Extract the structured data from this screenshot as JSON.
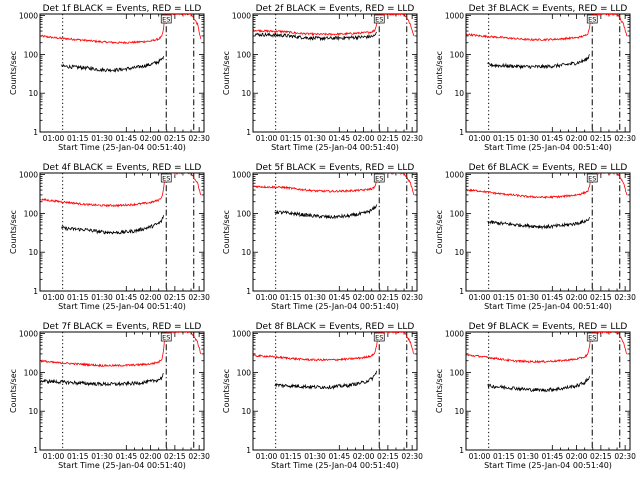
{
  "chart_data": [
    {
      "type": "line",
      "title": "Det 1f BLACK = Events, RED = LLD",
      "xlabel": "Start Time (25-Jan-04 00:51:40)",
      "ylabel": "Counts/sec",
      "xlim": [
        "00:51:40",
        "02:33:00"
      ],
      "xticks": [
        "01:00",
        "01:15",
        "01:30",
        "01:45",
        "02:00",
        "02:15",
        "02:30"
      ],
      "ylim": [
        1,
        1100
      ],
      "yscale": "log",
      "yticks": [
        "1",
        "10",
        "100",
        "1000"
      ],
      "annotation": "ES",
      "vlines": [
        {
          "x": "01:05:40",
          "style": "dotted"
        },
        {
          "x": "02:09:40",
          "style": "dash-dot"
        },
        {
          "x": "02:26:40",
          "style": "dash-dot"
        }
      ],
      "series": [
        {
          "name": "LLD",
          "color": "#ff0000",
          "x": [
            "00:52",
            "01:00",
            "01:10",
            "01:20",
            "01:30",
            "01:40",
            "01:50",
            "02:00",
            "02:05",
            "02:07",
            "02:08",
            "02:09",
            "02:12",
            "02:20",
            "02:25",
            "02:29",
            "02:31"
          ],
          "y": [
            300,
            270,
            250,
            230,
            210,
            200,
            205,
            220,
            250,
            290,
            450,
            1100,
            1100,
            1100,
            1100,
            600,
            250
          ]
        },
        {
          "name": "Events",
          "color": "#000000",
          "x": [
            "01:05",
            "01:10",
            "01:20",
            "01:30",
            "01:40",
            "01:50",
            "02:00",
            "02:05",
            "02:07",
            "02:08"
          ],
          "y": [
            50,
            48,
            45,
            40,
            40,
            45,
            55,
            65,
            75,
            90
          ]
        }
      ]
    },
    {
      "type": "line",
      "title": "Det 2f BLACK = Events, RED = LLD",
      "xlabel": "Start Time (25-Jan-04 00:51:40)",
      "ylabel": "Counts/sec",
      "xlim": [
        "00:51:40",
        "02:33:00"
      ],
      "xticks": [
        "01:00",
        "01:15",
        "01:30",
        "01:45",
        "02:00",
        "02:15",
        "02:30"
      ],
      "ylim": [
        1,
        1100
      ],
      "yscale": "log",
      "yticks": [
        "1",
        "10",
        "100",
        "1000"
      ],
      "annotation": "ES",
      "vlines": [
        {
          "x": "01:05:40",
          "style": "dotted"
        },
        {
          "x": "02:09:40",
          "style": "dash-dot"
        },
        {
          "x": "02:26:40",
          "style": "dash-dot"
        }
      ],
      "series": [
        {
          "name": "LLD",
          "color": "#ff0000",
          "x": [
            "00:52",
            "01:00",
            "01:10",
            "01:20",
            "01:30",
            "01:40",
            "01:50",
            "02:00",
            "02:05",
            "02:07",
            "02:08",
            "02:09",
            "02:12",
            "02:20",
            "02:25",
            "02:29",
            "02:31"
          ],
          "y": [
            420,
            400,
            390,
            350,
            330,
            330,
            340,
            360,
            380,
            420,
            600,
            1100,
            1100,
            1100,
            1100,
            600,
            300
          ]
        },
        {
          "name": "Events",
          "color": "#000000",
          "x": [
            "00:52",
            "01:00",
            "01:10",
            "01:20",
            "01:30",
            "01:40",
            "01:50",
            "02:00",
            "02:05",
            "02:07",
            "02:08"
          ],
          "y": [
            330,
            320,
            310,
            280,
            260,
            260,
            270,
            280,
            290,
            300,
            380
          ]
        }
      ]
    },
    {
      "type": "line",
      "title": "Det 3f BLACK = Events, RED = LLD",
      "xlabel": "Start Time (25-Jan-04 00:51:40)",
      "ylabel": "Counts/sec",
      "xlim": [
        "00:51:40",
        "02:33:00"
      ],
      "xticks": [
        "01:00",
        "01:15",
        "01:30",
        "01:45",
        "02:00",
        "02:15",
        "02:30"
      ],
      "ylim": [
        1,
        1100
      ],
      "yscale": "log",
      "yticks": [
        "1",
        "10",
        "100",
        "1000"
      ],
      "annotation": "ES",
      "vlines": [
        {
          "x": "01:05:40",
          "style": "dotted"
        },
        {
          "x": "02:09:40",
          "style": "dash-dot"
        },
        {
          "x": "02:26:40",
          "style": "dash-dot"
        }
      ],
      "series": [
        {
          "name": "LLD",
          "color": "#ff0000",
          "x": [
            "00:52",
            "01:00",
            "01:10",
            "01:20",
            "01:30",
            "01:40",
            "01:50",
            "02:00",
            "02:05",
            "02:07",
            "02:08",
            "02:09",
            "02:12",
            "02:20",
            "02:25",
            "02:29",
            "02:31"
          ],
          "y": [
            330,
            300,
            280,
            260,
            240,
            240,
            250,
            270,
            300,
            350,
            500,
            1100,
            1100,
            1100,
            1100,
            600,
            300
          ]
        },
        {
          "name": "Events",
          "color": "#000000",
          "x": [
            "01:05",
            "01:10",
            "01:20",
            "01:30",
            "01:40",
            "01:50",
            "02:00",
            "02:05",
            "02:07",
            "02:08"
          ],
          "y": [
            55,
            52,
            50,
            48,
            48,
            52,
            60,
            70,
            80,
            100
          ]
        }
      ]
    },
    {
      "type": "line",
      "title": "Det 4f BLACK = Events, RED = LLD",
      "xlabel": "Start Time (25-Jan-04 00:51:40)",
      "ylabel": "Counts/sec",
      "xlim": [
        "00:51:40",
        "02:33:00"
      ],
      "xticks": [
        "01:00",
        "01:15",
        "01:30",
        "01:45",
        "02:00",
        "02:15",
        "02:30"
      ],
      "ylim": [
        1,
        1100
      ],
      "yscale": "log",
      "yticks": [
        "1",
        "10",
        "100",
        "1000"
      ],
      "annotation": "ES",
      "vlines": [
        {
          "x": "01:05:40",
          "style": "dotted"
        },
        {
          "x": "02:09:40",
          "style": "dash-dot"
        },
        {
          "x": "02:26:40",
          "style": "dash-dot"
        }
      ],
      "series": [
        {
          "name": "LLD",
          "color": "#ff0000",
          "x": [
            "00:52",
            "01:00",
            "01:10",
            "01:20",
            "01:30",
            "01:40",
            "01:50",
            "02:00",
            "02:05",
            "02:07",
            "02:08",
            "02:09",
            "02:12",
            "02:20",
            "02:25",
            "02:29",
            "02:31"
          ],
          "y": [
            230,
            210,
            190,
            170,
            160,
            160,
            170,
            190,
            220,
            270,
            420,
            1100,
            1100,
            1100,
            1100,
            600,
            300
          ]
        },
        {
          "name": "Events",
          "color": "#000000",
          "x": [
            "01:05",
            "01:10",
            "01:20",
            "01:30",
            "01:40",
            "01:50",
            "02:00",
            "02:05",
            "02:07",
            "02:08"
          ],
          "y": [
            42,
            40,
            38,
            33,
            32,
            35,
            45,
            55,
            65,
            90
          ]
        }
      ]
    },
    {
      "type": "line",
      "title": "Det 5f BLACK = Events, RED = LLD",
      "xlabel": "Start Time (25-Jan-04 00:51:40)",
      "ylabel": "Counts/sec",
      "xlim": [
        "00:51:40",
        "02:33:00"
      ],
      "xticks": [
        "01:00",
        "01:15",
        "01:30",
        "01:45",
        "02:00",
        "02:15",
        "02:30"
      ],
      "ylim": [
        1,
        1100
      ],
      "yscale": "log",
      "yticks": [
        "1",
        "10",
        "100",
        "1000"
      ],
      "annotation": "ES",
      "vlines": [
        {
          "x": "01:05:40",
          "style": "dotted"
        },
        {
          "x": "02:09:40",
          "style": "dash-dot"
        },
        {
          "x": "02:26:40",
          "style": "dash-dot"
        }
      ],
      "series": [
        {
          "name": "LLD",
          "color": "#ff0000",
          "x": [
            "00:52",
            "01:00",
            "01:10",
            "01:20",
            "01:30",
            "01:40",
            "01:50",
            "02:00",
            "02:05",
            "02:07",
            "02:08",
            "02:09",
            "02:12",
            "02:20",
            "02:25",
            "02:29",
            "02:31"
          ],
          "y": [
            500,
            480,
            470,
            420,
            380,
            370,
            380,
            400,
            430,
            480,
            650,
            1100,
            1100,
            1100,
            1100,
            600,
            300
          ]
        },
        {
          "name": "Events",
          "color": "#000000",
          "x": [
            "01:05",
            "01:10",
            "01:20",
            "01:30",
            "01:40",
            "01:50",
            "02:00",
            "02:05",
            "02:07",
            "02:08"
          ],
          "y": [
            110,
            105,
            95,
            85,
            80,
            85,
            100,
            120,
            140,
            170
          ]
        }
      ]
    },
    {
      "type": "line",
      "title": "Det 6f BLACK = Events, RED = LLD",
      "xlabel": "Start Time (25-Jan-04 00:51:40)",
      "ylabel": "Counts/sec",
      "xlim": [
        "00:51:40",
        "02:33:00"
      ],
      "xticks": [
        "01:00",
        "01:15",
        "01:30",
        "01:45",
        "02:00",
        "02:15",
        "02:30"
      ],
      "ylim": [
        1,
        1100
      ],
      "yscale": "log",
      "yticks": [
        "1",
        "10",
        "100",
        "1000"
      ],
      "annotation": "ES",
      "vlines": [
        {
          "x": "01:05:40",
          "style": "dotted"
        },
        {
          "x": "02:09:40",
          "style": "dash-dot"
        },
        {
          "x": "02:26:40",
          "style": "dash-dot"
        }
      ],
      "series": [
        {
          "name": "LLD",
          "color": "#ff0000",
          "x": [
            "00:52",
            "01:00",
            "01:10",
            "01:20",
            "01:30",
            "01:40",
            "01:50",
            "02:00",
            "02:05",
            "02:07",
            "02:08",
            "02:09",
            "02:12",
            "02:20",
            "02:25",
            "02:29",
            "02:31"
          ],
          "y": [
            400,
            380,
            330,
            300,
            270,
            260,
            270,
            300,
            340,
            380,
            500,
            1100,
            1100,
            1100,
            1100,
            600,
            300
          ]
        },
        {
          "name": "Events",
          "color": "#000000",
          "x": [
            "01:05",
            "01:10",
            "01:20",
            "01:30",
            "01:40",
            "01:50",
            "02:00",
            "02:05",
            "02:07",
            "02:08"
          ],
          "y": [
            60,
            57,
            52,
            48,
            45,
            48,
            55,
            62,
            68,
            80
          ]
        }
      ]
    },
    {
      "type": "line",
      "title": "Det 7f BLACK = Events, RED = LLD",
      "xlabel": "Start Time (25-Jan-04 00:51:40)",
      "ylabel": "Counts/sec",
      "xlim": [
        "00:51:40",
        "02:33:00"
      ],
      "xticks": [
        "01:00",
        "01:15",
        "01:30",
        "01:45",
        "02:00",
        "02:15",
        "02:30"
      ],
      "ylim": [
        1,
        1100
      ],
      "yscale": "log",
      "yticks": [
        "1",
        "10",
        "100",
        "1000"
      ],
      "annotation": "ES",
      "vlines": [
        {
          "x": "01:05:40",
          "style": "dotted"
        },
        {
          "x": "02:09:40",
          "style": "dash-dot"
        },
        {
          "x": "02:26:40",
          "style": "dash-dot"
        }
      ],
      "series": [
        {
          "name": "LLD",
          "color": "#ff0000",
          "x": [
            "00:52",
            "01:00",
            "01:10",
            "01:20",
            "01:30",
            "01:40",
            "01:50",
            "02:00",
            "02:05",
            "02:07",
            "02:08",
            "02:09",
            "02:12",
            "02:20",
            "02:25",
            "02:29",
            "02:31"
          ],
          "y": [
            200,
            180,
            170,
            160,
            150,
            150,
            155,
            165,
            185,
            220,
            380,
            1100,
            1100,
            1100,
            1100,
            600,
            300
          ]
        },
        {
          "name": "Events",
          "color": "#000000",
          "x": [
            "00:52",
            "01:00",
            "01:10",
            "01:20",
            "01:30",
            "01:40",
            "01:50",
            "02:00",
            "02:05",
            "02:07",
            "02:08"
          ],
          "y": [
            60,
            58,
            55,
            52,
            50,
            50,
            52,
            58,
            65,
            75,
            95
          ]
        }
      ]
    },
    {
      "type": "line",
      "title": "Det 8f BLACK = Events, RED = LLD",
      "xlabel": "Start Time (25-Jan-04 00:51:40)",
      "ylabel": "Counts/sec",
      "xlim": [
        "00:51:40",
        "02:33:00"
      ],
      "xticks": [
        "01:00",
        "01:15",
        "01:30",
        "01:45",
        "02:00",
        "02:15",
        "02:30"
      ],
      "ylim": [
        1,
        1100
      ],
      "yscale": "log",
      "yticks": [
        "1",
        "10",
        "100",
        "1000"
      ],
      "annotation": "ES",
      "vlines": [
        {
          "x": "01:05:40",
          "style": "dotted"
        },
        {
          "x": "02:09:40",
          "style": "dash-dot"
        },
        {
          "x": "02:26:40",
          "style": "dash-dot"
        }
      ],
      "series": [
        {
          "name": "LLD",
          "color": "#ff0000",
          "x": [
            "00:52",
            "01:00",
            "01:10",
            "01:20",
            "01:30",
            "01:40",
            "01:50",
            "02:00",
            "02:05",
            "02:07",
            "02:08",
            "02:09",
            "02:12",
            "02:20",
            "02:25",
            "02:29",
            "02:31"
          ],
          "y": [
            270,
            260,
            240,
            220,
            210,
            210,
            220,
            240,
            270,
            320,
            480,
            1100,
            1100,
            1100,
            1100,
            600,
            300
          ]
        },
        {
          "name": "Events",
          "color": "#000000",
          "x": [
            "01:05",
            "01:10",
            "01:20",
            "01:30",
            "01:40",
            "01:50",
            "02:00",
            "02:05",
            "02:07",
            "02:08"
          ],
          "y": [
            48,
            46,
            44,
            42,
            42,
            46,
            55,
            68,
            85,
            110
          ]
        }
      ]
    },
    {
      "type": "line",
      "title": "Det 9f BLACK = Events, RED = LLD",
      "xlabel": "Start Time (25-Jan-04 00:51:40)",
      "ylabel": "Counts/sec",
      "xlim": [
        "00:51:40",
        "02:33:00"
      ],
      "xticks": [
        "01:00",
        "01:15",
        "01:30",
        "01:45",
        "02:00",
        "02:15",
        "02:30"
      ],
      "ylim": [
        1,
        1100
      ],
      "yscale": "log",
      "yticks": [
        "1",
        "10",
        "100",
        "1000"
      ],
      "annotation": "ES",
      "vlines": [
        {
          "x": "01:05:40",
          "style": "dotted"
        },
        {
          "x": "02:09:40",
          "style": "dash-dot"
        },
        {
          "x": "02:26:40",
          "style": "dash-dot"
        }
      ],
      "series": [
        {
          "name": "LLD",
          "color": "#ff0000",
          "x": [
            "00:52",
            "01:00",
            "01:10",
            "01:20",
            "01:30",
            "01:40",
            "01:50",
            "02:00",
            "02:05",
            "02:07",
            "02:08",
            "02:09",
            "02:12",
            "02:20",
            "02:25",
            "02:29",
            "02:31"
          ],
          "y": [
            280,
            260,
            230,
            200,
            190,
            190,
            200,
            220,
            250,
            300,
            450,
            1100,
            1100,
            1100,
            1100,
            600,
            300
          ]
        },
        {
          "name": "Events",
          "color": "#000000",
          "x": [
            "01:05",
            "01:10",
            "01:20",
            "01:30",
            "01:40",
            "01:50",
            "02:00",
            "02:05",
            "02:07",
            "02:08"
          ],
          "y": [
            45,
            43,
            40,
            36,
            35,
            38,
            45,
            55,
            65,
            80
          ]
        }
      ]
    }
  ]
}
